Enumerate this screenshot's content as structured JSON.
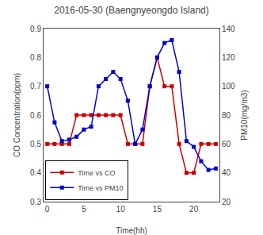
{
  "chart_data": {
    "type": "line",
    "title": "2016-05-30 (Baengnyeongdo Island)",
    "xlabel": "Time(hh)",
    "ylabel": "CO Concentration(ppm)",
    "y2label": "PM10(mg/m3)",
    "x": [
      0,
      1,
      2,
      3,
      4,
      5,
      6,
      7,
      8,
      9,
      10,
      11,
      12,
      13,
      14,
      15,
      16,
      17,
      18,
      19,
      20,
      21,
      22,
      23
    ],
    "series": [
      {
        "name": "Time vs CO",
        "color": "#cc0000",
        "marker": "square",
        "values": [
          0.5,
          0.5,
          0.5,
          0.5,
          0.6,
          0.6,
          0.6,
          0.6,
          0.6,
          0.6,
          0.6,
          0.5,
          0.5,
          0.5,
          0.7,
          0.8,
          0.7,
          0.7,
          0.5,
          0.4,
          0.4,
          0.5,
          0.5,
          0.5
        ]
      },
      {
        "name": "Time vs PM10",
        "color": "#0000cc",
        "marker": "square",
        "axis": "y2",
        "values": [
          100,
          75,
          62,
          63,
          65,
          70,
          72,
          100,
          105,
          110,
          105,
          90,
          60,
          70,
          100,
          120,
          130,
          132,
          110,
          62,
          58,
          48,
          42,
          43
        ]
      }
    ],
    "xlim": [
      -0.5,
      23.5
    ],
    "xticks": [
      0,
      5,
      10,
      15,
      20
    ],
    "ylim": [
      0.3,
      0.9
    ],
    "yticks": [
      0.3,
      0.4,
      0.5,
      0.6,
      0.7,
      0.8,
      0.9
    ],
    "y2lim": [
      20,
      140
    ],
    "y2ticks": [
      20,
      40,
      60,
      80,
      100,
      120,
      140
    ],
    "grid": false,
    "legend": "lower left"
  }
}
